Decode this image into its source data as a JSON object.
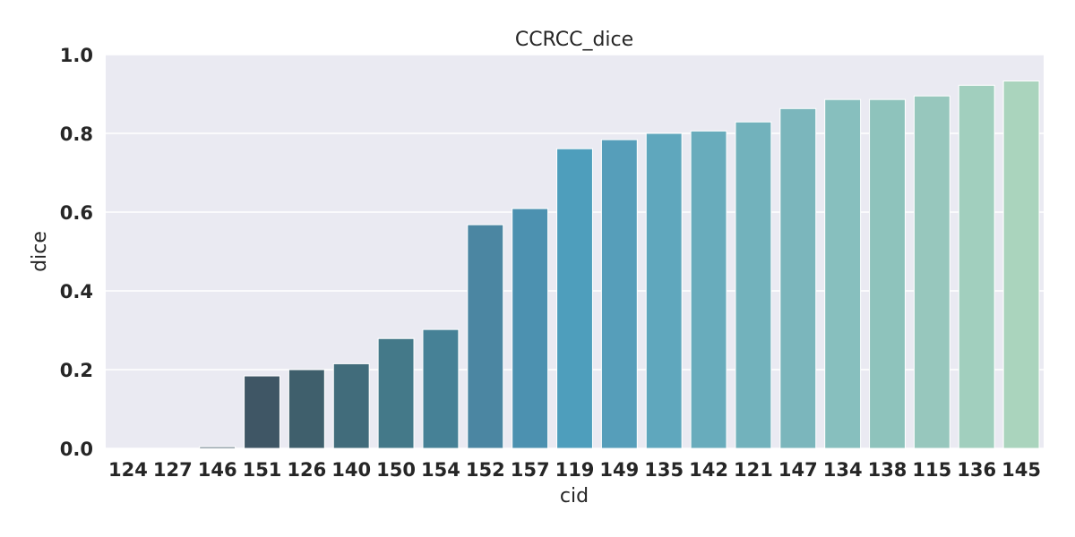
{
  "chart_data": {
    "type": "bar",
    "title": "CCRCC_dice",
    "xlabel": "cid",
    "ylabel": "dice",
    "ylim": [
      0,
      1.0
    ],
    "yticks": [
      "0.0",
      "0.2",
      "0.4",
      "0.6",
      "0.8",
      "1.0"
    ],
    "grid": true,
    "categories": [
      "124",
      "127",
      "146",
      "151",
      "126",
      "140",
      "150",
      "154",
      "152",
      "157",
      "119",
      "149",
      "135",
      "142",
      "121",
      "147",
      "134",
      "138",
      "115",
      "136",
      "145"
    ],
    "values": [
      0.0,
      0.0,
      0.004,
      0.184,
      0.2,
      0.215,
      0.279,
      0.302,
      0.568,
      0.609,
      0.761,
      0.784,
      0.8,
      0.806,
      0.829,
      0.863,
      0.886,
      0.886,
      0.895,
      0.922,
      0.933
    ],
    "colors": [
      "#29404f",
      "#2d4654",
      "#314c5b",
      "#3f5665",
      "#3f5f6c",
      "#416c7b",
      "#447989",
      "#468196",
      "#4b86a2",
      "#4c91b0",
      "#4e9ebc",
      "#569eba",
      "#5fa7bd",
      "#68acbc",
      "#72b2bc",
      "#7bb6bc",
      "#87bfbe",
      "#8ec3bc",
      "#97c7bd",
      "#a1cfbe",
      "#aad4bd"
    ]
  }
}
